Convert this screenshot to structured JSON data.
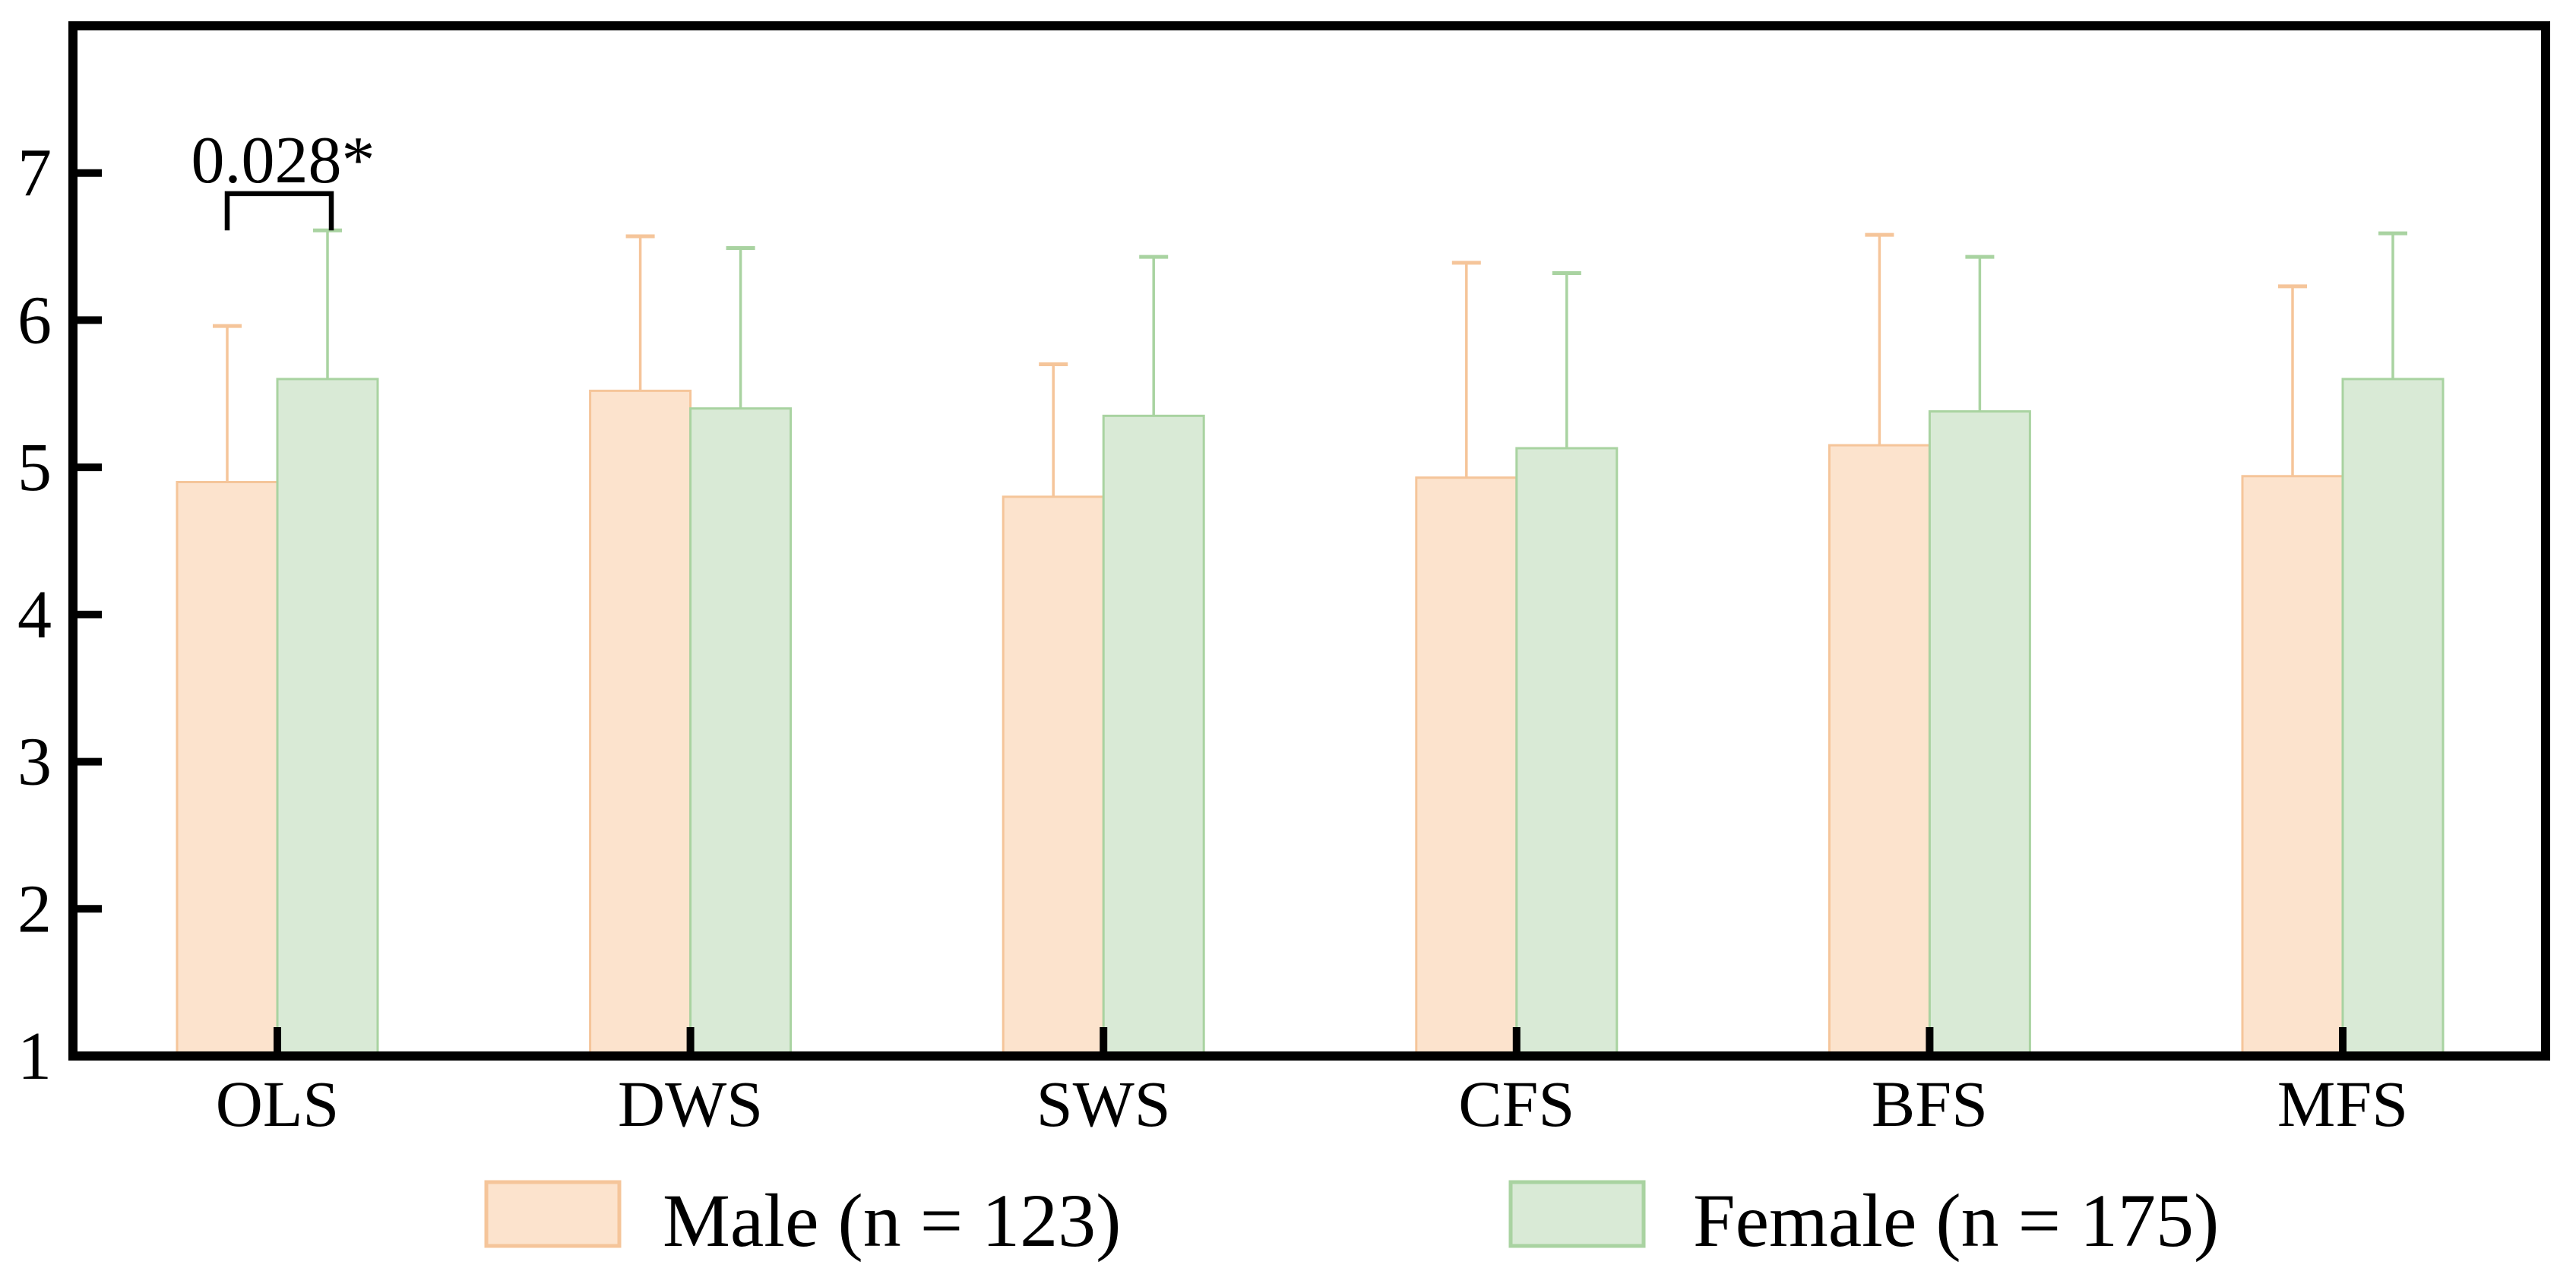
{
  "figure": {
    "background_color": "#ffffff",
    "frame_color": "#000000",
    "text_color": "#000000"
  },
  "chart_data": {
    "type": "bar",
    "title": "",
    "xlabel": "",
    "ylabel": "",
    "categories": [
      "OLS",
      "DWS",
      "SWS",
      "CFS",
      "BFS",
      "MFS"
    ],
    "series": [
      {
        "name": "Male (n = 123)",
        "fill": "#FCE3CD",
        "edge": "#F5C59A",
        "values": [
          4.9,
          5.52,
          4.8,
          4.93,
          5.15,
          4.94
        ],
        "errors_plus": [
          1.06,
          1.05,
          0.9,
          1.46,
          1.43,
          1.29
        ]
      },
      {
        "name": "Female (n = 175)",
        "fill": "#D9EAD6",
        "edge": "#A9D3A1",
        "values": [
          5.6,
          5.4,
          5.35,
          5.13,
          5.38,
          5.6
        ],
        "errors_plus": [
          1.01,
          1.09,
          1.08,
          1.19,
          1.05,
          0.99
        ]
      }
    ],
    "ylim": [
      1,
      8
    ],
    "yticks": [
      "1",
      "2",
      "3",
      "4",
      "5",
      "6",
      "7"
    ],
    "ytick_values": [
      1,
      2,
      3,
      4,
      5,
      6,
      7
    ],
    "grid": false,
    "legend_position": "bottom",
    "significance": {
      "category": "OLS",
      "label": "0.028*",
      "bracket_top_value": 6.86,
      "left_drop_value": 6.61,
      "right_drop_value": 6.61
    }
  }
}
